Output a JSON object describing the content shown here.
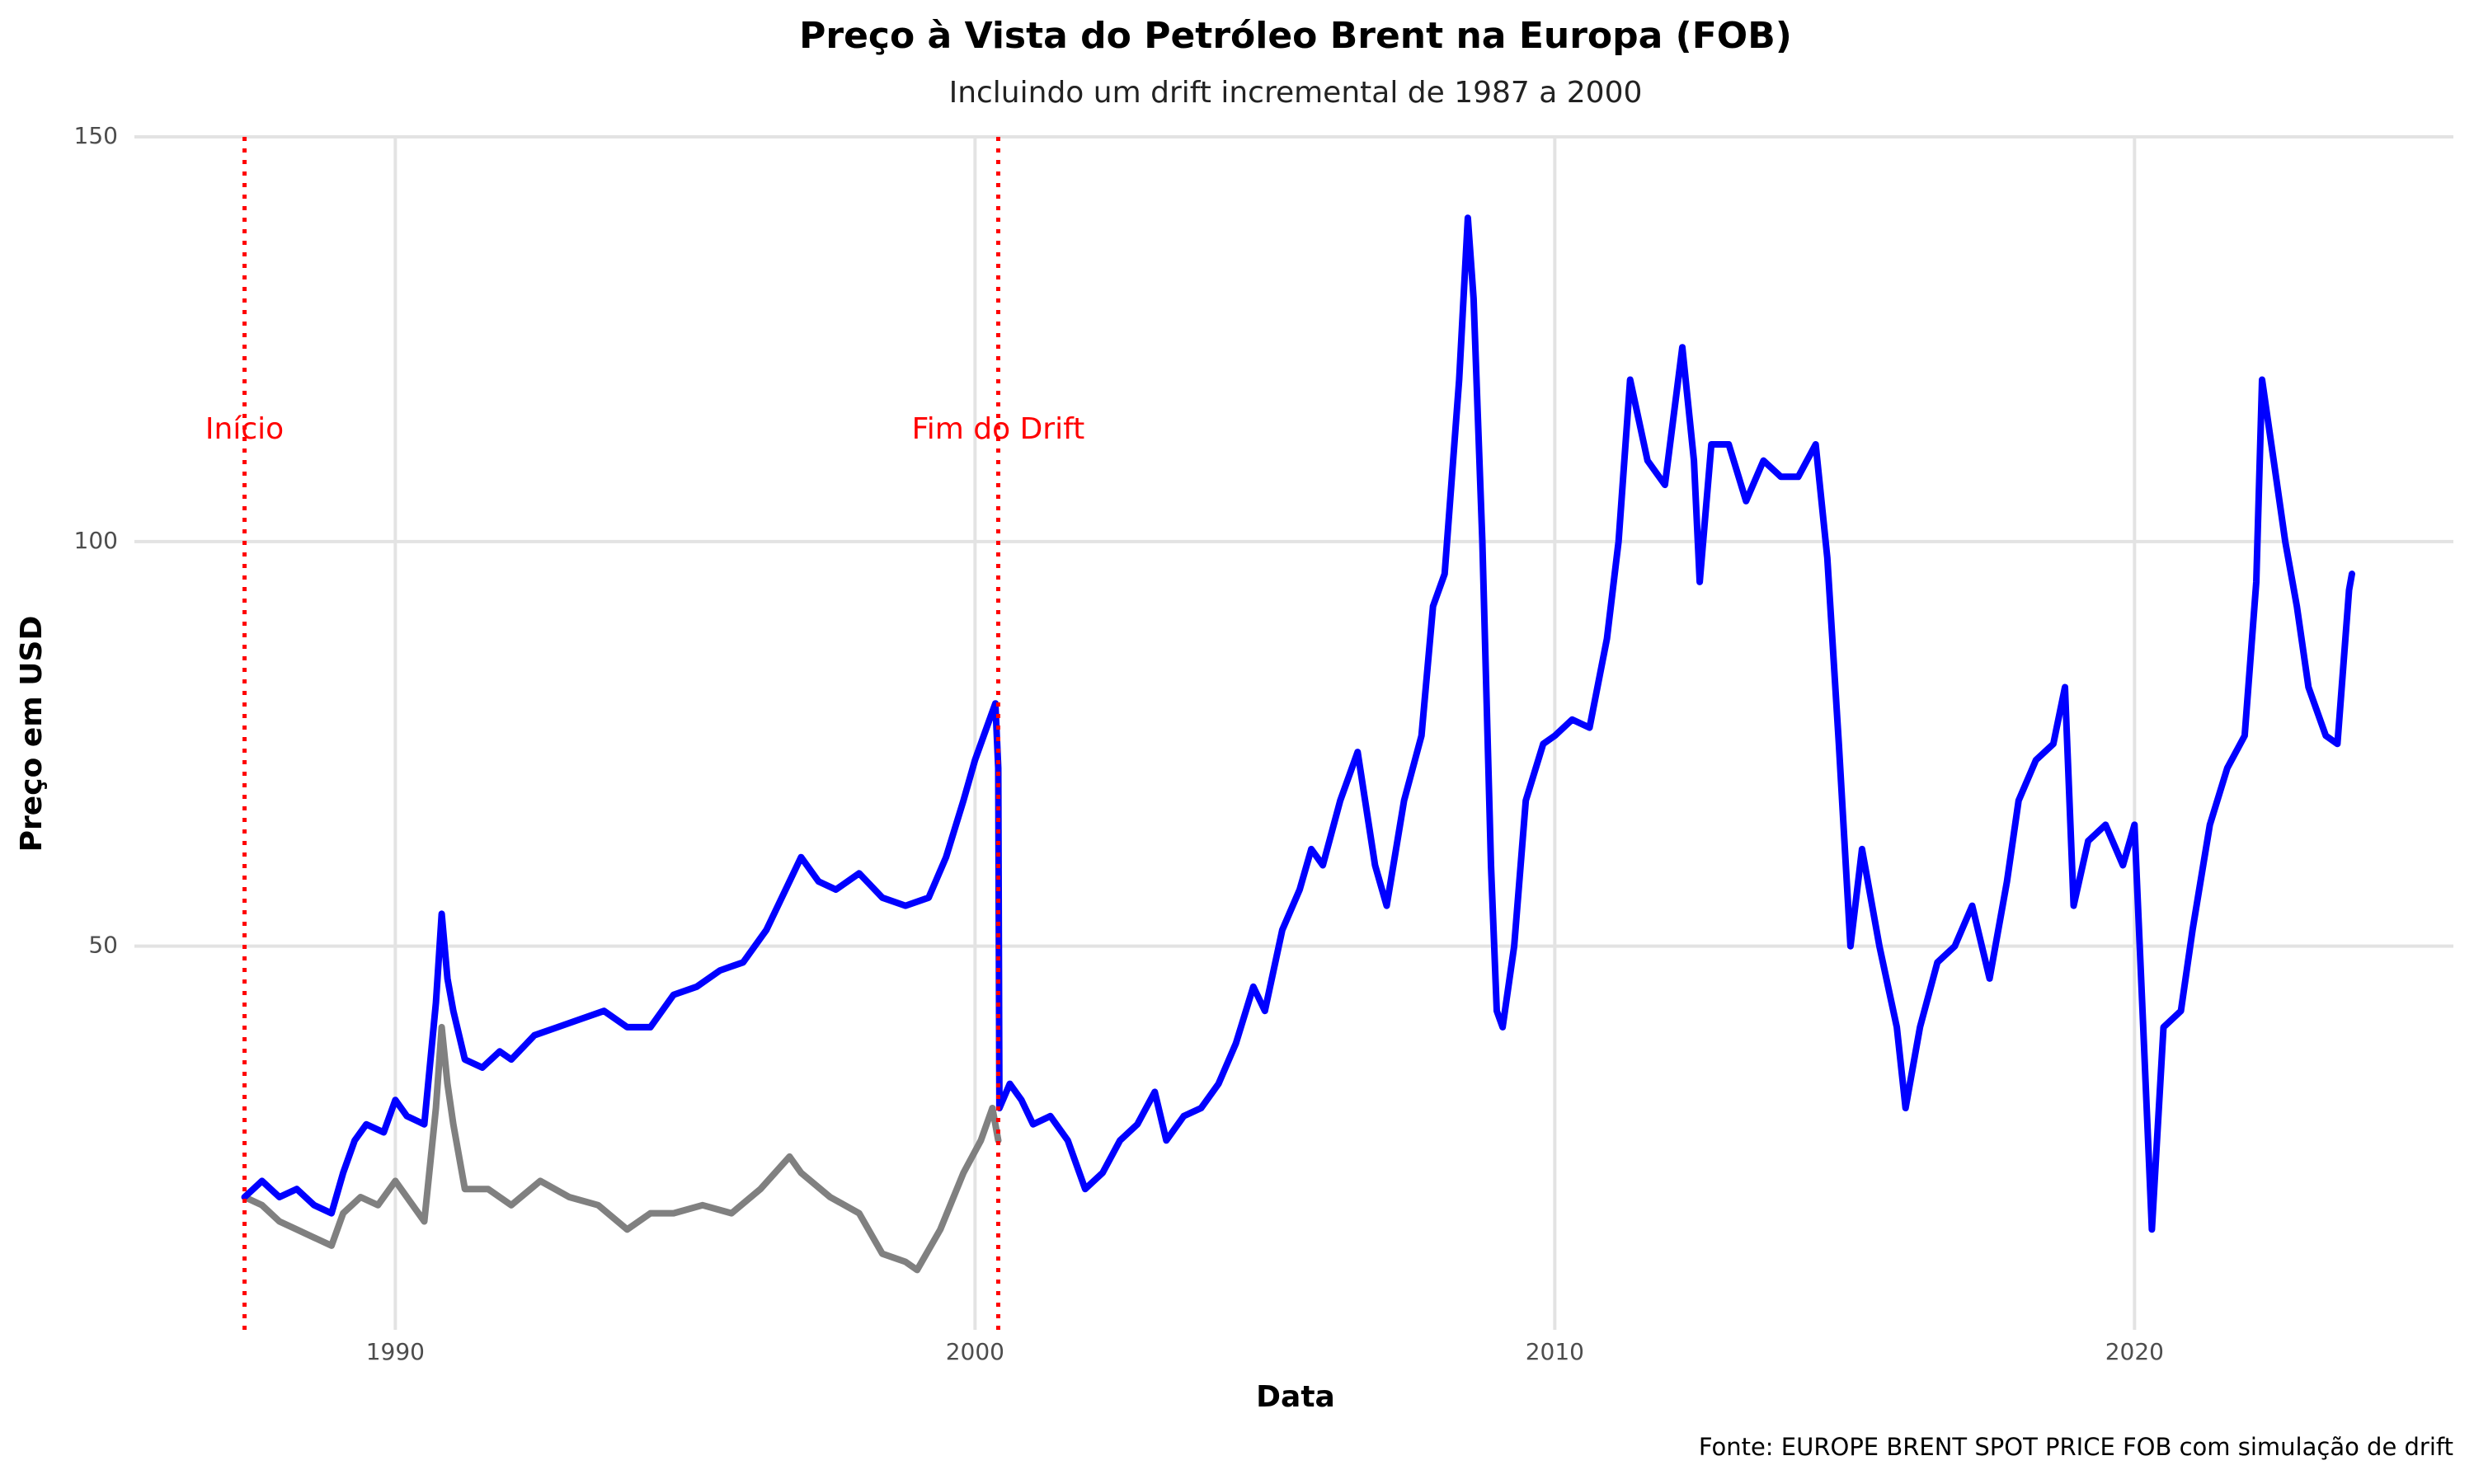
{
  "chart_data": {
    "type": "line",
    "title": "Preço à Vista do Petróleo Brent na Europa (FOB)",
    "subtitle": "Incluindo um drift incremental de 1987 a 2000",
    "x_label": "Data",
    "y_label": "Preço em USD",
    "caption": "Fonte: EUROPE BRENT SPOT PRICE FOB com simulação de drift",
    "xlim": [
      1985.5,
      2025.5
    ],
    "xticks": [
      1990,
      2000,
      2010,
      2020
    ],
    "ylim": [
      2.6,
      150
    ],
    "yticks": [
      50,
      100,
      150
    ],
    "grid": true,
    "vlines": [
      {
        "x": 1987.4,
        "label": "Início",
        "color": "#ff0000"
      },
      {
        "x": 2000.4,
        "label": "Fim do Drift",
        "color": "#ff0000"
      }
    ],
    "series": [
      {
        "color": "#808080",
        "x": [
          1987.4,
          1987.7,
          1988.0,
          1988.3,
          1988.6,
          1988.9,
          1989.1,
          1989.4,
          1989.7,
          1990.0,
          1990.3,
          1990.5,
          1990.7,
          1990.8,
          1990.9,
          1991.0,
          1991.2,
          1991.6,
          1992.0,
          1992.5,
          1993.0,
          1993.5,
          1994.0,
          1994.4,
          1994.8,
          1995.3,
          1995.8,
          1996.3,
          1996.8,
          1997.0,
          1997.5,
          1998.0,
          1998.4,
          1998.8,
          1999.0,
          1999.4,
          1999.8,
          2000.1,
          2000.3,
          2000.4
        ],
        "values": [
          19,
          18,
          16,
          15,
          14,
          13,
          17,
          19,
          18,
          21,
          18,
          16,
          30,
          40,
          33,
          28,
          20,
          20,
          18,
          21,
          19,
          18,
          15,
          17,
          17,
          18,
          17,
          20,
          24,
          22,
          19,
          17,
          12,
          11,
          10,
          15,
          22,
          26,
          30,
          26
        ]
      },
      {
        "color": "#0000ff",
        "x": [
          1987.4,
          1987.7,
          1988.0,
          1988.3,
          1988.6,
          1988.9,
          1989.1,
          1989.3,
          1989.5,
          1989.8,
          1990.0,
          1990.2,
          1990.5,
          1990.7,
          1990.8,
          1990.9,
          1991.0,
          1991.2,
          1991.5,
          1991.8,
          1992.0,
          1992.4,
          1992.8,
          1993.2,
          1993.6,
          1994.0,
          1994.4,
          1994.8,
          1995.2,
          1995.6,
          1996.0,
          1996.4,
          1996.8,
          1997.0,
          1997.3,
          1997.6,
          1998.0,
          1998.4,
          1998.8,
          1999.2,
          1999.5,
          1999.8,
          2000.0,
          2000.2,
          2000.35,
          2000.4,
          2000.42,
          2000.6,
          2000.8,
          2001.0,
          2001.3,
          2001.6,
          2001.9,
          2002.2,
          2002.5,
          2002.8,
          2003.1,
          2003.3,
          2003.6,
          2003.9,
          2004.2,
          2004.5,
          2004.8,
          2005.0,
          2005.3,
          2005.6,
          2005.8,
          2006.0,
          2006.3,
          2006.6,
          2006.9,
          2007.1,
          2007.4,
          2007.7,
          2007.9,
          2008.1,
          2008.35,
          2008.5,
          2008.6,
          2008.75,
          2008.9,
          2009.0,
          2009.1,
          2009.3,
          2009.5,
          2009.8,
          2010.0,
          2010.3,
          2010.6,
          2010.9,
          2011.1,
          2011.3,
          2011.6,
          2011.9,
          2012.2,
          2012.4,
          2012.5,
          2012.7,
          2013.0,
          2013.3,
          2013.6,
          2013.9,
          2014.2,
          2014.5,
          2014.7,
          2014.9,
          2015.1,
          2015.3,
          2015.6,
          2015.9,
          2016.05,
          2016.3,
          2016.6,
          2016.9,
          2017.2,
          2017.5,
          2017.8,
          2018.0,
          2018.3,
          2018.6,
          2018.8,
          2018.95,
          2019.2,
          2019.5,
          2019.8,
          2020.0,
          2020.15,
          2020.3,
          2020.5,
          2020.8,
          2021.0,
          2021.3,
          2021.6,
          2021.9,
          2022.1,
          2022.2,
          2022.4,
          2022.6,
          2022.8,
          2023.0,
          2023.3,
          2023.5,
          2023.7,
          2023.75
        ],
        "values": [
          19,
          21,
          19,
          20,
          18,
          17,
          22,
          26,
          28,
          27,
          31,
          29,
          28,
          43,
          54,
          46,
          42,
          36,
          35,
          37,
          36,
          39,
          40,
          41,
          42,
          40,
          40,
          44,
          45,
          47,
          48,
          52,
          58,
          61,
          58,
          57,
          59,
          56,
          55,
          56,
          61,
          68,
          73,
          77,
          80,
          72,
          30,
          33,
          31,
          28,
          29,
          26,
          20,
          22,
          26,
          28,
          32,
          26,
          29,
          30,
          33,
          38,
          45,
          42,
          52,
          57,
          62,
          60,
          68,
          74,
          60,
          55,
          68,
          76,
          92,
          96,
          120,
          140,
          130,
          100,
          60,
          42,
          40,
          50,
          68,
          75,
          76,
          78,
          77,
          88,
          100,
          120,
          110,
          107,
          124,
          110,
          95,
          112,
          112,
          105,
          110,
          108,
          108,
          112,
          98,
          75,
          50,
          62,
          50,
          40,
          30,
          40,
          48,
          50,
          55,
          46,
          58,
          68,
          73,
          75,
          82,
          55,
          63,
          65,
          60,
          65,
          40,
          15,
          40,
          42,
          52,
          65,
          72,
          76,
          95,
          120,
          110,
          100,
          92,
          82,
          76,
          75,
          94,
          96
        ]
      }
    ]
  }
}
